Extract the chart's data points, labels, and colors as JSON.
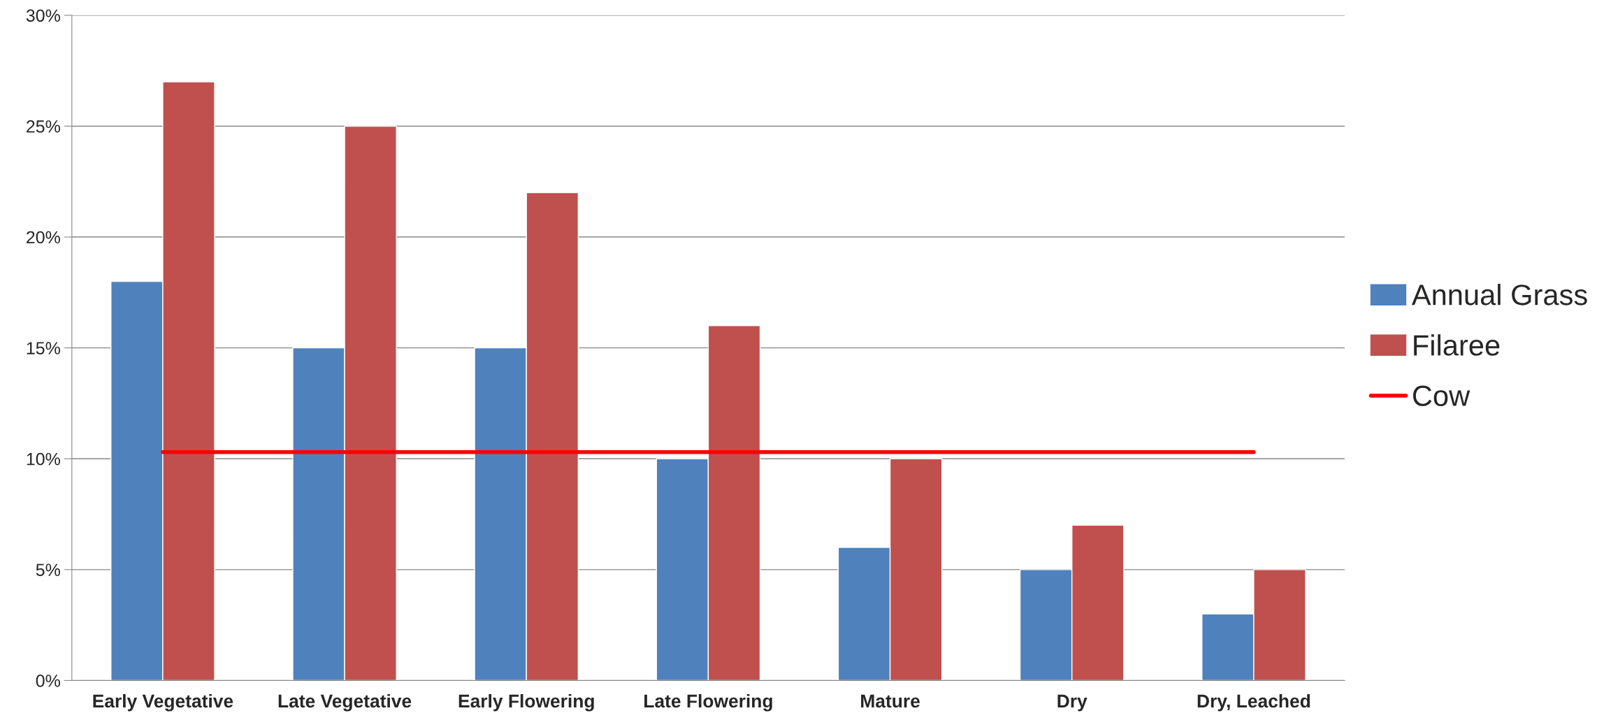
{
  "chart_data": {
    "type": "bar",
    "categories": [
      "Early Vegetative",
      "Late Vegetative",
      "Early Flowering",
      "Late Flowering",
      "Mature",
      "Dry",
      "Dry, Leached"
    ],
    "series": [
      {
        "name": "Annual Grass",
        "color": "#4f81bd",
        "values": [
          18,
          15,
          15,
          10,
          6,
          5,
          3
        ]
      },
      {
        "name": "Filaree",
        "color": "#c0504d",
        "values": [
          27,
          25,
          22,
          16,
          10,
          7,
          5
        ]
      },
      {
        "name": "Cow",
        "type": "line",
        "color": "#ff0000",
        "values": [
          10.3,
          10.3,
          10.3,
          10.3,
          10.3,
          10.3,
          10.3
        ]
      }
    ],
    "ylim": [
      0,
      30
    ],
    "yticks": [
      {
        "value": 0,
        "label": "0%"
      },
      {
        "value": 5,
        "label": "5%"
      },
      {
        "value": 10,
        "label": "10%"
      },
      {
        "value": 15,
        "label": "15%"
      },
      {
        "value": 20,
        "label": "20%"
      },
      {
        "value": 25,
        "label": "25%"
      },
      {
        "value": 30,
        "label": "30%"
      }
    ],
    "grid": "y",
    "legend": "right"
  }
}
